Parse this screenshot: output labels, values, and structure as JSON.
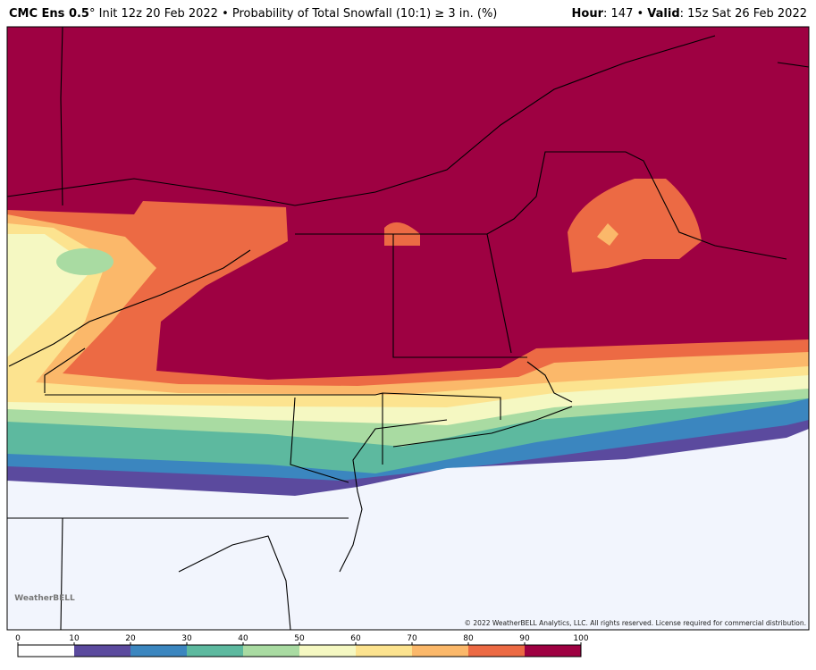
{
  "header": {
    "model": "CMC Ens 0.5",
    "description": "° Init 12z 20 Feb 2022 • Probability of Total Snowfall (10:1) ≥ 3 in. (%)",
    "hour_label": "Hour",
    "hour_value": ": 147 • ",
    "valid_label": "Valid",
    "valid_value": ": 15z Sat 26 Feb 2022"
  },
  "map": {
    "copyright": "© 2022 WeatherBELL Analytics, LLC. All rights reserved. License required for commercial distribution.",
    "logo": "WeatherBELL"
  },
  "colorbar": {
    "ticks": [
      0,
      10,
      20,
      30,
      40,
      50,
      60,
      70,
      80,
      90,
      100
    ],
    "colors": [
      "#ffffff",
      "#5b4a9e",
      "#3b86bf",
      "#5db99f",
      "#a9dba2",
      "#f5f8c2",
      "#fce38f",
      "#fbb86a",
      "#ec6a44",
      "#9e0142"
    ]
  }
}
